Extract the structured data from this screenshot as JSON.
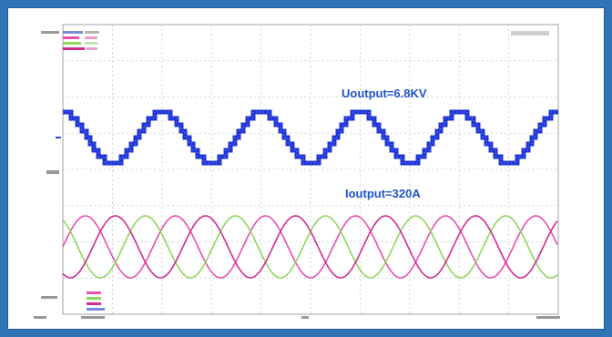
{
  "colors": {
    "background": "#2f74b4",
    "frame": "#ffffff",
    "grid": "#c8c8c8",
    "voltage": "#1f35d8",
    "phase_a": "#e84fb0",
    "phase_b": "#8fd65e",
    "phase_c": "#d22c90",
    "annotation": "#1f53c9"
  },
  "chart_data": {
    "type": "line",
    "grid": true,
    "panels": [
      {
        "name": "voltage",
        "annotation": "Uoutput=6.8KV",
        "cycles": 5,
        "series": [
          {
            "color": "#1f35d8",
            "levels": 9,
            "phase_deg": 0
          }
        ]
      },
      {
        "name": "current",
        "annotation": "Ioutput=320A",
        "cycles": 5.5,
        "series": [
          {
            "color": "#e84fb0",
            "phase_deg": 0
          },
          {
            "color": "#8fd65e",
            "phase_deg": 120
          },
          {
            "color": "#d22c90",
            "phase_deg": 240
          }
        ]
      }
    ]
  }
}
